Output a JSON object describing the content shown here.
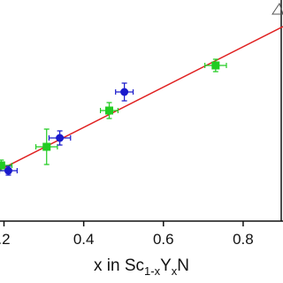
{
  "chart_data": {
    "type": "scatter",
    "xlabel": [
      "x in Sc",
      "1-x",
      "Y",
      "x",
      "N"
    ],
    "xlim": [
      0.19,
      0.9
    ],
    "xticks": [
      {
        "value": 0.2,
        "label": ".2"
      },
      0.4,
      0.6,
      0.8
    ],
    "ylim": [
      70,
      320
    ],
    "fit": {
      "color": "#e02020",
      "x": [
        0.19,
        0.9
      ],
      "y": [
        128,
        290
      ]
    },
    "series": [
      {
        "marker": "square",
        "color": "#22cc22",
        "x": [
          0.193,
          0.307,
          0.464,
          0.731
        ],
        "y": [
          133,
          154,
          195,
          246
        ],
        "xerr": [
          0.027,
          0.027,
          0.022,
          0.027
        ],
        "yerr": [
          6,
          20,
          9,
          7
        ]
      },
      {
        "marker": "circle",
        "color": "#1a1acc",
        "x": [
          0.211,
          0.34,
          0.502
        ],
        "y": [
          127,
          164,
          216
        ],
        "xerr": [
          0.022,
          0.027,
          0.022
        ],
        "yerr": [
          5,
          8,
          10
        ]
      }
    ]
  }
}
